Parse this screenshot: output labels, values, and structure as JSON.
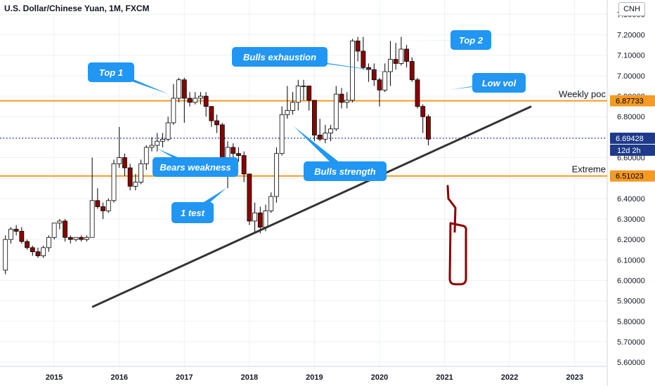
{
  "header": {
    "title": "U.S. Dollar/Chinese Yuan, 1M, FXCM",
    "symbol": "CNH"
  },
  "colors": {
    "up_body": "#ffffff",
    "down_body": "#8b0000",
    "candle_border": "#000000",
    "hline": "#f59a23",
    "dotted": "#1f3fa8",
    "trendline": "#333333",
    "callout": "#2196f3",
    "sketch": "#8b0000"
  },
  "chart_data": {
    "type": "candlestick",
    "title": "U.S. Dollar/Chinese Yuan, 1M, FXCM",
    "xlabel": "",
    "ylabel": "",
    "x_range": [
      "2014-03",
      "2023-07"
    ],
    "ylim": [
      5.58,
      7.37
    ],
    "y_ticks": [
      "7.30000",
      "7.20000",
      "7.10000",
      "7.00000",
      "6.90000",
      "6.80000",
      "6.70000",
      "6.60000",
      "6.50000",
      "6.40000",
      "6.30000",
      "6.20000",
      "6.10000",
      "6.00000",
      "5.90000",
      "5.80000",
      "5.70000",
      "5.60000"
    ],
    "x_ticks": [
      "2015",
      "2016",
      "2017",
      "2018",
      "2019",
      "2020",
      "2021",
      "2022",
      "2023"
    ],
    "grid": true,
    "candles": [
      [
        "2014-04",
        6.05,
        6.22,
        6.03,
        6.2
      ],
      [
        "2014-05",
        6.2,
        6.26,
        6.18,
        6.25
      ],
      [
        "2014-06",
        6.25,
        6.27,
        6.22,
        6.24
      ],
      [
        "2014-07",
        6.24,
        6.26,
        6.18,
        6.19
      ],
      [
        "2014-08",
        6.19,
        6.2,
        6.15,
        6.16
      ],
      [
        "2014-09",
        6.16,
        6.17,
        6.12,
        6.14
      ],
      [
        "2014-10",
        6.14,
        6.16,
        6.11,
        6.12
      ],
      [
        "2014-11",
        6.12,
        6.17,
        6.11,
        6.16
      ],
      [
        "2014-12",
        6.16,
        6.22,
        6.14,
        6.21
      ],
      [
        "2015-01",
        6.21,
        6.28,
        6.2,
        6.28
      ],
      [
        "2015-02",
        6.28,
        6.3,
        6.25,
        6.29
      ],
      [
        "2015-03",
        6.29,
        6.3,
        6.19,
        6.21
      ],
      [
        "2015-04",
        6.21,
        6.22,
        6.18,
        6.2
      ],
      [
        "2015-05",
        6.2,
        6.21,
        6.19,
        6.21
      ],
      [
        "2015-06",
        6.21,
        6.22,
        6.19,
        6.2
      ],
      [
        "2015-07",
        6.2,
        6.22,
        6.19,
        6.21
      ],
      [
        "2015-08",
        6.21,
        6.6,
        6.21,
        6.39
      ],
      [
        "2015-09",
        6.39,
        6.45,
        6.35,
        6.36
      ],
      [
        "2015-10",
        6.36,
        6.38,
        6.3,
        6.34
      ],
      [
        "2015-11",
        6.34,
        6.4,
        6.33,
        6.39
      ],
      [
        "2015-12",
        6.39,
        6.59,
        6.38,
        6.57
      ],
      [
        "2016-01",
        6.57,
        6.75,
        6.55,
        6.6
      ],
      [
        "2016-02",
        6.6,
        6.62,
        6.51,
        6.55
      ],
      [
        "2016-03",
        6.55,
        6.57,
        6.44,
        6.46
      ],
      [
        "2016-04",
        6.46,
        6.52,
        6.44,
        6.48
      ],
      [
        "2016-05",
        6.48,
        6.59,
        6.47,
        6.57
      ],
      [
        "2016-06",
        6.57,
        6.66,
        6.54,
        6.65
      ],
      [
        "2016-07",
        6.65,
        6.7,
        6.63,
        6.66
      ],
      [
        "2016-08",
        6.66,
        6.72,
        6.63,
        6.68
      ],
      [
        "2016-09",
        6.68,
        6.72,
        6.65,
        6.69
      ],
      [
        "2016-10",
        6.69,
        6.8,
        6.68,
        6.77
      ],
      [
        "2016-11",
        6.77,
        6.96,
        6.76,
        6.89
      ],
      [
        "2016-12",
        6.89,
        6.99,
        6.87,
        6.98
      ],
      [
        "2017-01",
        6.98,
        6.99,
        6.77,
        6.89
      ],
      [
        "2017-02",
        6.89,
        6.92,
        6.85,
        6.87
      ],
      [
        "2017-03",
        6.87,
        6.92,
        6.86,
        6.89
      ],
      [
        "2017-04",
        6.89,
        6.92,
        6.86,
        6.9
      ],
      [
        "2017-05",
        6.9,
        6.92,
        6.8,
        6.85
      ],
      [
        "2017-06",
        6.85,
        6.85,
        6.75,
        6.78
      ],
      [
        "2017-07",
        6.78,
        6.81,
        6.72,
        6.76
      ],
      [
        "2017-08",
        6.76,
        6.77,
        6.56,
        6.6
      ],
      [
        "2017-09",
        6.6,
        6.68,
        6.45,
        6.65
      ],
      [
        "2017-10",
        6.65,
        6.67,
        6.6,
        6.62
      ],
      [
        "2017-11",
        6.62,
        6.65,
        6.58,
        6.61
      ],
      [
        "2017-12",
        6.61,
        6.63,
        6.48,
        6.52
      ],
      [
        "2018-01",
        6.52,
        6.52,
        6.27,
        6.29
      ],
      [
        "2018-02",
        6.29,
        6.38,
        6.23,
        6.33
      ],
      [
        "2018-03",
        6.33,
        6.36,
        6.23,
        6.26
      ],
      [
        "2018-04",
        6.26,
        6.37,
        6.24,
        6.34
      ],
      [
        "2018-05",
        6.34,
        6.43,
        6.33,
        6.41
      ],
      [
        "2018-06",
        6.41,
        6.65,
        6.38,
        6.62
      ],
      [
        "2018-07",
        6.62,
        6.85,
        6.61,
        6.81
      ],
      [
        "2018-08",
        6.81,
        6.95,
        6.79,
        6.83
      ],
      [
        "2018-09",
        6.83,
        6.92,
        6.81,
        6.87
      ],
      [
        "2018-10",
        6.87,
        6.98,
        6.83,
        6.95
      ],
      [
        "2018-11",
        6.95,
        6.98,
        6.88,
        6.95
      ],
      [
        "2018-12",
        6.95,
        6.95,
        6.83,
        6.88
      ],
      [
        "2019-01",
        6.88,
        6.88,
        6.68,
        6.71
      ],
      [
        "2019-02",
        6.71,
        6.79,
        6.68,
        6.69
      ],
      [
        "2019-03",
        6.69,
        6.76,
        6.67,
        6.72
      ],
      [
        "2019-04",
        6.72,
        6.76,
        6.68,
        6.74
      ],
      [
        "2019-05",
        6.74,
        6.95,
        6.73,
        6.91
      ],
      [
        "2019-06",
        6.91,
        6.94,
        6.84,
        6.87
      ],
      [
        "2019-07",
        6.87,
        6.92,
        6.84,
        6.88
      ],
      [
        "2019-08",
        6.88,
        7.18,
        6.87,
        7.17
      ],
      [
        "2019-09",
        7.17,
        7.19,
        7.07,
        7.12
      ],
      [
        "2019-10",
        7.12,
        7.19,
        7.03,
        7.04
      ],
      [
        "2019-11",
        7.04,
        7.06,
        6.97,
        7.03
      ],
      [
        "2019-12",
        7.03,
        7.06,
        6.95,
        6.98
      ],
      [
        "2020-01",
        6.98,
        6.99,
        6.85,
        6.93
      ],
      [
        "2020-02",
        6.93,
        7.06,
        6.92,
        7.02
      ],
      [
        "2020-03",
        7.02,
        7.17,
        6.95,
        7.08
      ],
      [
        "2020-04",
        7.08,
        7.16,
        7.03,
        7.06
      ],
      [
        "2020-05",
        7.06,
        7.19,
        7.05,
        7.13
      ],
      [
        "2020-06",
        7.13,
        7.15,
        7.04,
        7.07
      ],
      [
        "2020-07",
        7.07,
        7.09,
        6.97,
        6.98
      ],
      [
        "2020-08",
        6.98,
        6.99,
        6.84,
        6.85
      ],
      [
        "2020-09",
        6.85,
        6.86,
        6.72,
        6.8
      ],
      [
        "2020-10",
        6.8,
        6.81,
        6.66,
        6.69
      ]
    ]
  },
  "price_axis_labels": {
    "weekly_poc": "6.87733",
    "current": "6.69428",
    "countdown": "12d 2h",
    "extreme": "6.51023"
  },
  "lines": {
    "weekly_poc": {
      "value": 6.87733,
      "label": "Weekly poc"
    },
    "current": {
      "value": 6.69428
    },
    "extreme": {
      "value": 6.51023,
      "label": "Extreme"
    },
    "trendline": {
      "from": [
        "2015-08",
        5.87
      ],
      "to": [
        "2022-05",
        6.85
      ]
    }
  },
  "annotations": [
    {
      "id": "top1",
      "text": "Top 1"
    },
    {
      "id": "top2",
      "text": "Top 2"
    },
    {
      "id": "bulls-exhaustion",
      "text": "Bulls exhaustion"
    },
    {
      "id": "low-vol",
      "text": "Low vol"
    },
    {
      "id": "bears-weakness",
      "text": "Bears weakness"
    },
    {
      "id": "bulls-strength",
      "text": "Bulls strength"
    },
    {
      "id": "one-test",
      "text": "1 test"
    }
  ]
}
